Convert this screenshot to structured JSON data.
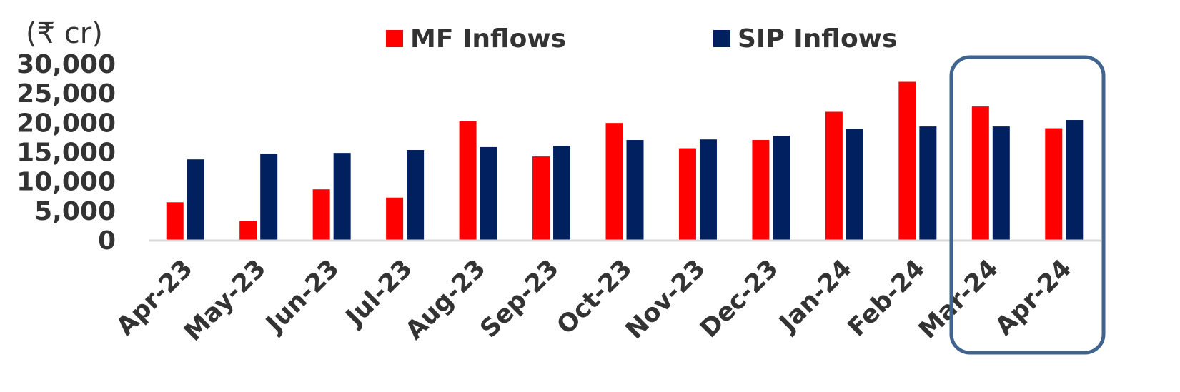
{
  "chart_data": {
    "type": "bar",
    "unit_label": "(₹ cr)",
    "categories": [
      "Apr-23",
      "May-23",
      "Jun-23",
      "Jul-23",
      "Aug-23",
      "Sep-23",
      "Oct-23",
      "Nov-23",
      "Dec-23",
      "Jan-24",
      "Feb-24",
      "Mar-24",
      "Apr-24"
    ],
    "series": [
      {
        "name": "MF Inflows",
        "color": "#ff0000",
        "values": [
          6400,
          3200,
          8600,
          7200,
          20200,
          14200,
          19900,
          15600,
          17000,
          21800,
          26900,
          22700,
          19000
        ]
      },
      {
        "name": "SIP Inflows",
        "color": "#002060",
        "values": [
          13700,
          14700,
          14800,
          15300,
          15800,
          16000,
          17000,
          17100,
          17700,
          18900,
          19300,
          19300,
          20400
        ]
      }
    ],
    "yticks": [
      "0",
      "5,000",
      "10,000",
      "15,000",
      "20,000",
      "25,000",
      "30,000"
    ],
    "ytick_values": [
      0,
      5000,
      10000,
      15000,
      20000,
      25000,
      30000
    ],
    "ylim": [
      0,
      30000
    ],
    "xlabel": "",
    "ylabel": "",
    "title": "",
    "grid": false,
    "legend_position": "top",
    "highlight": {
      "categories": [
        "Mar-24",
        "Apr-24"
      ],
      "color": "#41648f"
    },
    "baseline_color": "#d9d9d9"
  }
}
